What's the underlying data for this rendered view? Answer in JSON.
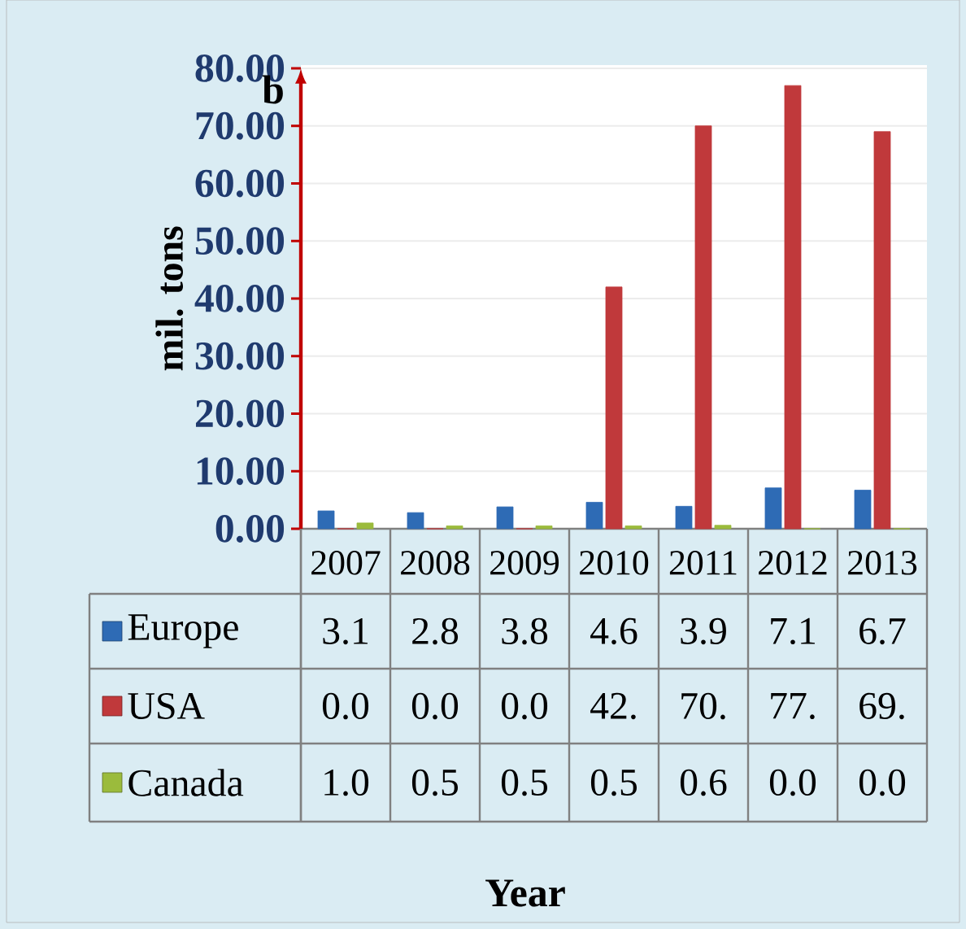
{
  "chart_data": {
    "type": "bar",
    "ylabel": "mil. tons",
    "annotations": [
      "b",
      "Year"
    ],
    "categories": [
      "2007",
      "2008",
      "2009",
      "2010",
      "2011",
      "2012",
      "2013"
    ],
    "series": [
      {
        "name": "Europe",
        "color": "#2e6bb5",
        "values": [
          3.1,
          2.8,
          3.8,
          4.6,
          3.9,
          7.1,
          6.7
        ],
        "value_labels": [
          "3.1",
          "2.8",
          "3.8",
          "4.6",
          "3.9",
          "7.1",
          "6.7"
        ]
      },
      {
        "name": "USA",
        "color": "#c0393b",
        "values": [
          0.0,
          0.0,
          0.0,
          42.0,
          70.0,
          77.0,
          69.0
        ],
        "value_labels": [
          "0.0",
          "0.0",
          "0.0",
          "42.",
          "70.",
          "77.",
          "69."
        ]
      },
      {
        "name": "Canada",
        "color": "#9bbb3c",
        "values": [
          1.0,
          0.5,
          0.5,
          0.5,
          0.6,
          0.0,
          0.0
        ],
        "value_labels": [
          "1.0",
          "0.5",
          "0.5",
          "0.5",
          "0.6",
          "0.0",
          "0.0"
        ]
      }
    ],
    "ylim": [
      0,
      80
    ],
    "yticks": [
      {
        "value": 0,
        "label": "0.00"
      },
      {
        "value": 10,
        "label": "10.00"
      },
      {
        "value": 20,
        "label": "20.00"
      },
      {
        "value": 30,
        "label": "30.00"
      },
      {
        "value": 40,
        "label": "40.00"
      },
      {
        "value": 50,
        "label": "50.00"
      },
      {
        "value": 60,
        "label": "60.00"
      },
      {
        "value": 70,
        "label": "70.00"
      },
      {
        "value": 80,
        "label": "80.00"
      }
    ],
    "grid": "y",
    "legend": "bottom"
  }
}
